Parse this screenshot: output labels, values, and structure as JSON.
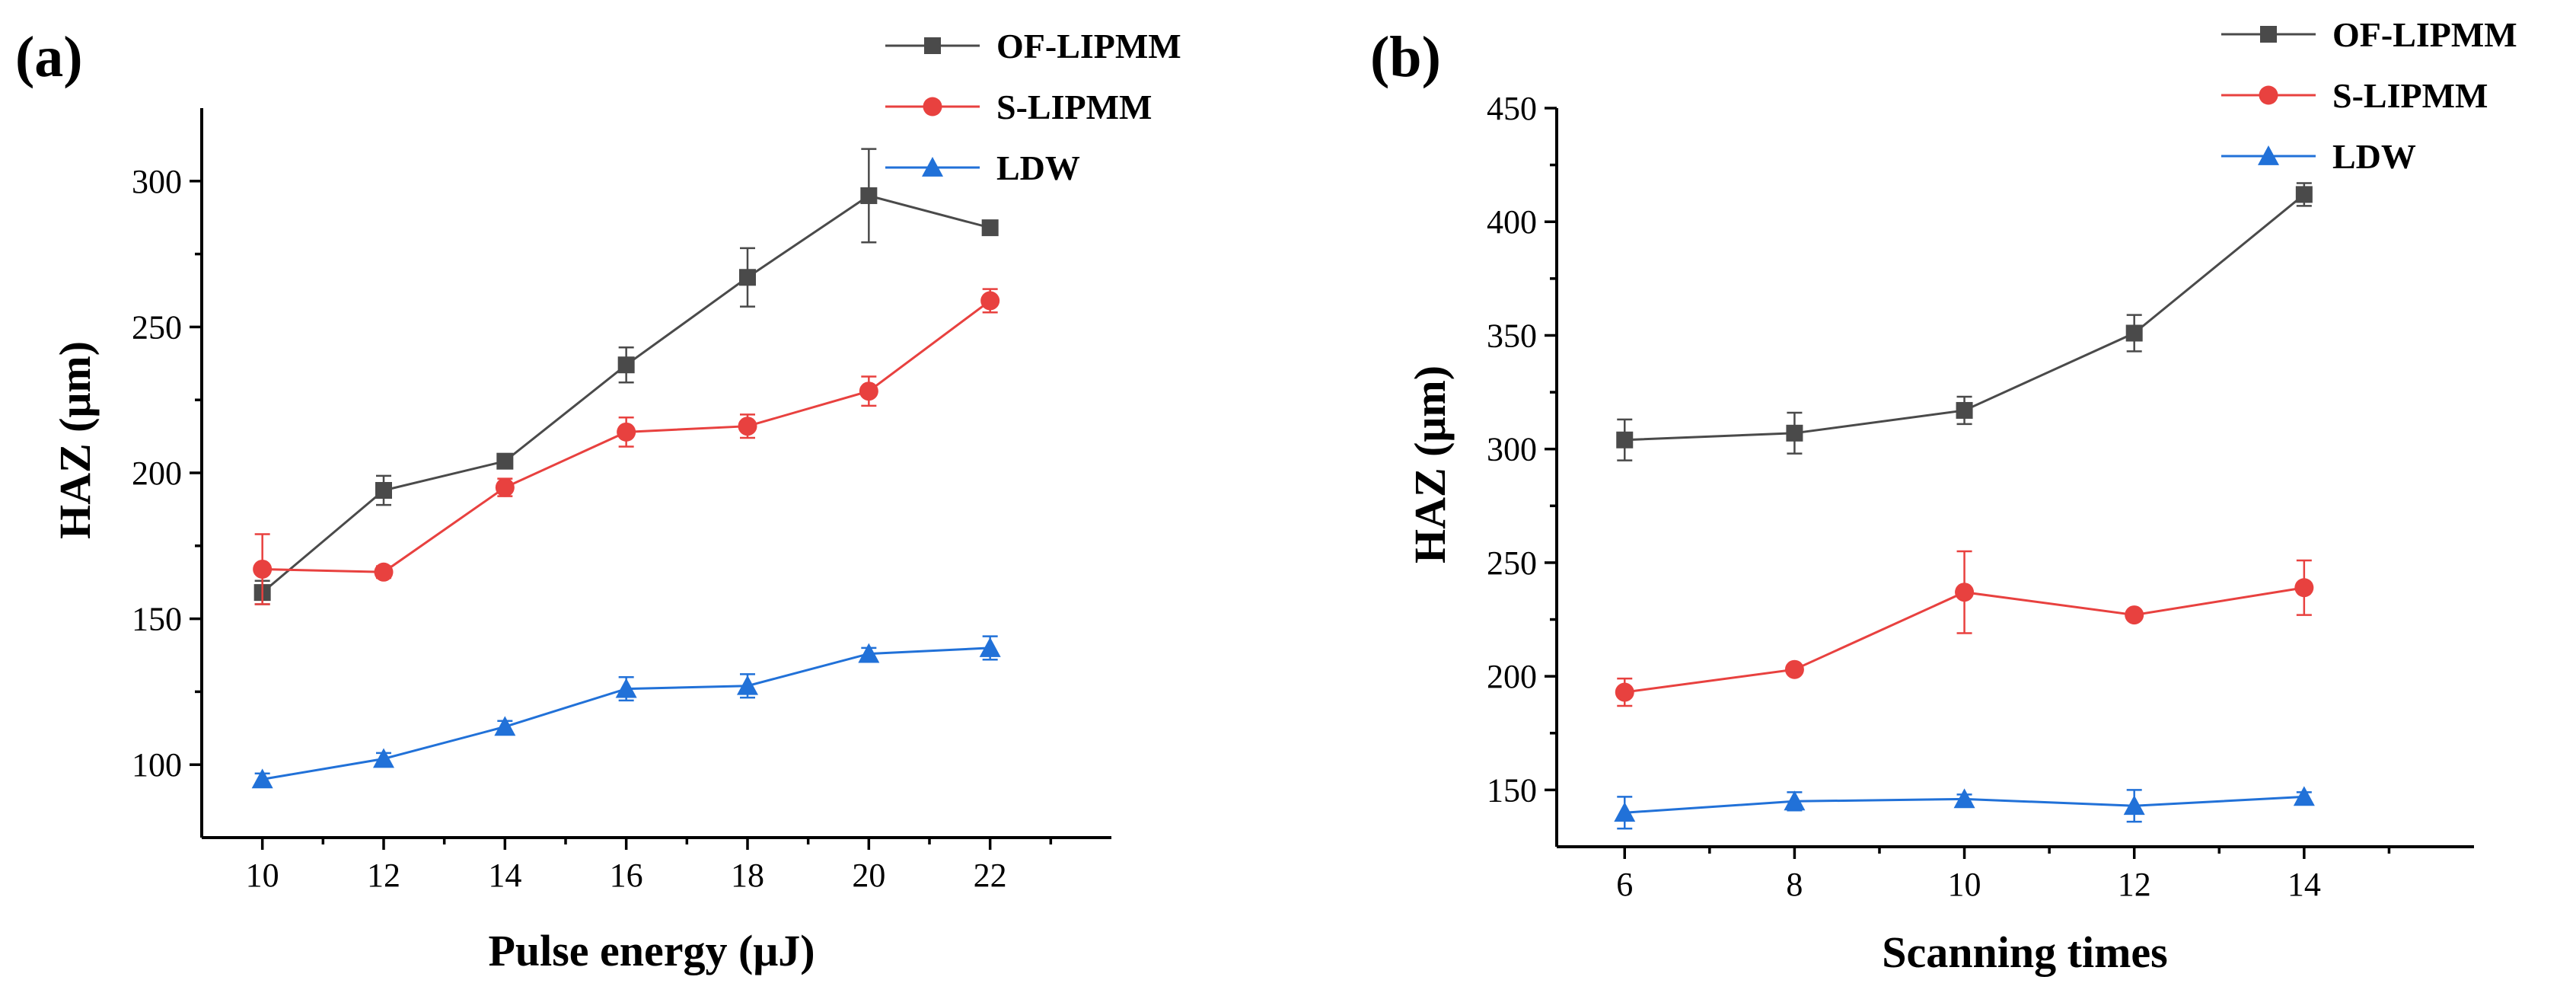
{
  "chart_data": [
    {
      "type": "line",
      "panel_label": "(a)",
      "title": "",
      "xlabel": "Pulse energy (μJ)",
      "ylabel": "HAZ (μm)",
      "x": [
        10,
        12,
        14,
        16,
        18,
        20,
        22
      ],
      "xlim": [
        9,
        24
      ],
      "ylim": [
        75,
        325
      ],
      "xticks": [
        10,
        12,
        14,
        16,
        18,
        20,
        22
      ],
      "yticks": [
        100,
        150,
        200,
        250,
        300
      ],
      "xtick_labels": [
        "10",
        "12",
        "14",
        "16",
        "18",
        "20",
        "22"
      ],
      "ytick_labels": [
        "100",
        "150",
        "200",
        "250",
        "300"
      ],
      "grid": false,
      "legend_position": "top-right",
      "series": [
        {
          "name": "OF-LIPMM",
          "color": "#4a4a4a",
          "marker": "square",
          "values": [
            159,
            194,
            204,
            237,
            267,
            295,
            284
          ],
          "errors": [
            4,
            5,
            2,
            6,
            10,
            16,
            2
          ]
        },
        {
          "name": "S-LIPMM",
          "color": "#e8413f",
          "marker": "circle",
          "values": [
            167,
            166,
            195,
            214,
            216,
            228,
            259
          ],
          "errors": [
            12,
            2,
            3,
            5,
            4,
            5,
            4
          ]
        },
        {
          "name": "LDW",
          "color": "#2171d8",
          "marker": "triangle",
          "values": [
            95,
            102,
            113,
            126,
            127,
            138,
            140
          ],
          "errors": [
            2,
            2,
            2,
            4,
            4,
            2,
            4
          ]
        }
      ]
    },
    {
      "type": "line",
      "panel_label": "(b)",
      "title": "",
      "xlabel": "Scanning times",
      "ylabel": "HAZ (μm)",
      "x": [
        6,
        8,
        10,
        12,
        14
      ],
      "xlim": [
        5.2,
        16
      ],
      "ylim": [
        125,
        450
      ],
      "xticks": [
        6,
        8,
        10,
        12,
        14
      ],
      "yticks": [
        150,
        200,
        250,
        300,
        350,
        400,
        450
      ],
      "xtick_labels": [
        "6",
        "8",
        "10",
        "12",
        "14"
      ],
      "ytick_labels": [
        "150",
        "200",
        "250",
        "300",
        "350",
        "400",
        "450"
      ],
      "grid": false,
      "legend_position": "top-right",
      "series": [
        {
          "name": "OF-LIPMM",
          "color": "#4a4a4a",
          "marker": "square",
          "values": [
            304,
            307,
            317,
            351,
            412
          ],
          "errors": [
            9,
            9,
            6,
            8,
            5
          ]
        },
        {
          "name": "S-LIPMM",
          "color": "#e8413f",
          "marker": "circle",
          "values": [
            193,
            203,
            237,
            227,
            239
          ],
          "errors": [
            6,
            2,
            18,
            2,
            12
          ]
        },
        {
          "name": "LDW",
          "color": "#2171d8",
          "marker": "triangle",
          "values": [
            140,
            145,
            146,
            143,
            147
          ],
          "errors": [
            7,
            4,
            2,
            7,
            2
          ]
        }
      ]
    }
  ]
}
